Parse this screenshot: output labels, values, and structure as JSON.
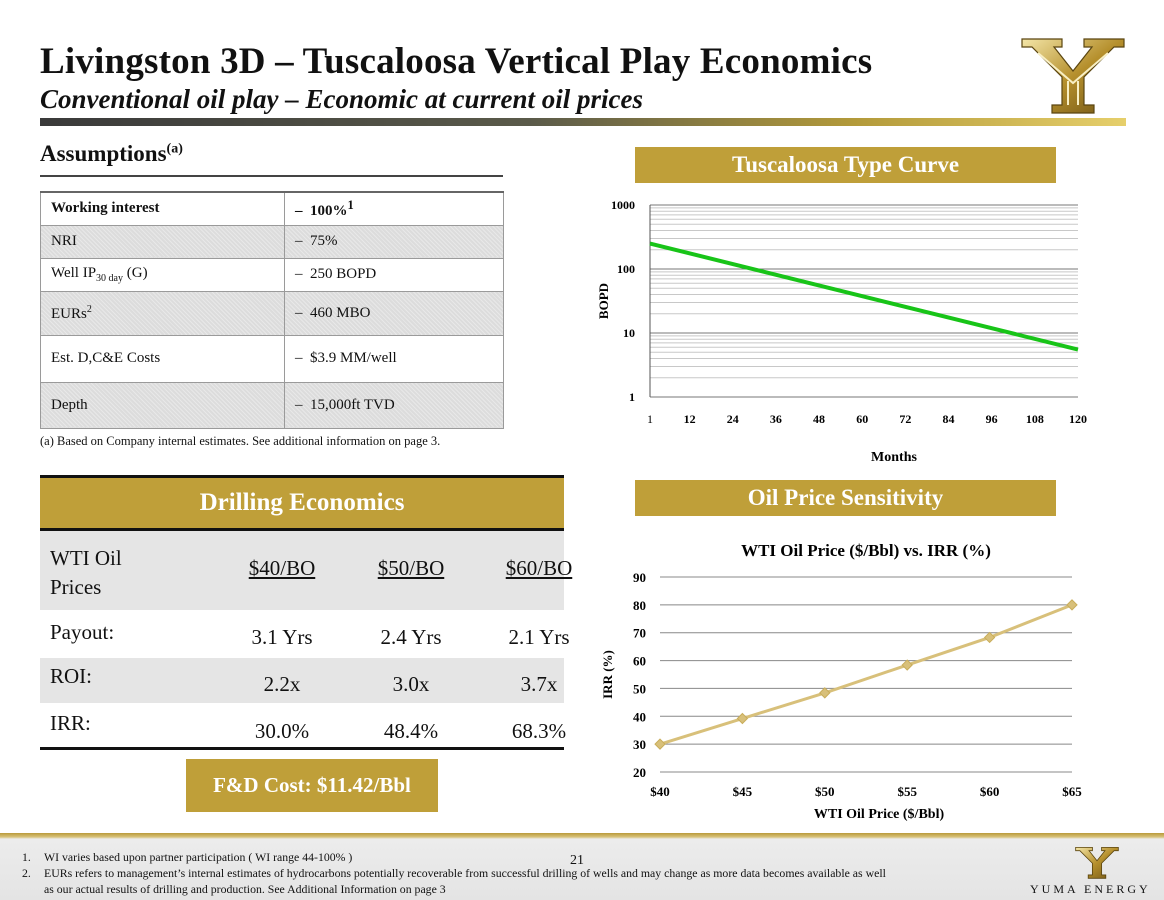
{
  "header": {
    "title": "Livingston 3D – Tuscaloosa Vertical Play Economics",
    "subtitle": "Conventional oil play – Economic at current oil prices",
    "logo_icon": "yuma-y-logo-icon"
  },
  "assumptions": {
    "heading": "Assumptions",
    "heading_note": "(a)",
    "rows": [
      {
        "label": "Working interest",
        "value": "100%",
        "value_sup": "1"
      },
      {
        "label": "NRI",
        "value": "75%"
      },
      {
        "label_main": "Well IP",
        "label_sub": "30 day",
        "label_tail": " (G)",
        "value": "250 BOPD"
      },
      {
        "label": "EURs",
        "label_sup": "2",
        "value": "460 MBO"
      },
      {
        "label": "Est. D,C&E Costs",
        "value": "$3.9 MM/well"
      },
      {
        "label": "Depth",
        "value": "15,000ft TVD"
      }
    ],
    "dash": "–",
    "footnote": "(a)  Based on Company internal estimates.  See additional information on page 3."
  },
  "drilling": {
    "header": "Drilling Economics",
    "row_labels": {
      "prices": "WTI Oil Prices",
      "payout": "Payout:",
      "roi": "ROI:",
      "irr": "IRR:"
    },
    "prices": [
      "$40/BO",
      "$50/BO",
      "$60/BO"
    ],
    "payout": [
      "3.1 Yrs",
      "2.4 Yrs",
      "2.1 Yrs"
    ],
    "roi": [
      "2.2x",
      "3.0x",
      "3.7x"
    ],
    "irr": [
      "30.0%",
      "48.4%",
      "68.3%"
    ],
    "fd_cost": "F&D Cost: $11.42/Bbl"
  },
  "chart_data": [
    {
      "type": "line",
      "heading": "Tuscaloosa Type Curve",
      "title": "",
      "xlabel": "Months",
      "ylabel": "BOPD",
      "yscale": "log",
      "ylim": [
        1,
        1000
      ],
      "xlim": [
        1,
        120
      ],
      "x_ticks": [
        "1",
        "12",
        "24",
        "36",
        "48",
        "60",
        "72",
        "84",
        "96",
        "108",
        "120"
      ],
      "y_ticks": [
        "1",
        "10",
        "100",
        "1000"
      ],
      "series": [
        {
          "name": "Type Curve",
          "x": [
            1,
            120
          ],
          "values": [
            250,
            5.5
          ],
          "color": "#18c418"
        }
      ]
    },
    {
      "type": "line",
      "heading": "Oil Price Sensitivity",
      "title": "WTI Oil Price ($/Bbl) vs. IRR (%)",
      "xlabel": "WTI Oil Price ($/Bbl)",
      "ylabel": "IRR (%)",
      "ylim": [
        20,
        90
      ],
      "categories": [
        "$40",
        "$45",
        "$50",
        "$55",
        "$60",
        "$65"
      ],
      "y_ticks": [
        "20",
        "30",
        "40",
        "50",
        "60",
        "70",
        "80",
        "90"
      ],
      "series": [
        {
          "name": "IRR",
          "values": [
            30,
            39.2,
            48.4,
            58.4,
            68.3,
            80
          ],
          "color": "#d8c07a"
        }
      ]
    }
  ],
  "footer": {
    "page_number": "21",
    "notes": [
      {
        "num": "1.",
        "text": "WI varies based upon partner participation ( WI range 44-100% )"
      },
      {
        "num": "2.",
        "text": "EURs refers to management’s internal estimates of hydrocarbons potentially recoverable from successful drilling of wells and may change as more data becomes available as well"
      },
      {
        "num": "",
        "text": "as our actual results of drilling and production. See Additional Information on page 3"
      }
    ],
    "brand": "YUMA ENERGY"
  },
  "colors": {
    "gold": "#bf9f39",
    "curve_green": "#18c418",
    "irr_line": "#d8c07a"
  }
}
